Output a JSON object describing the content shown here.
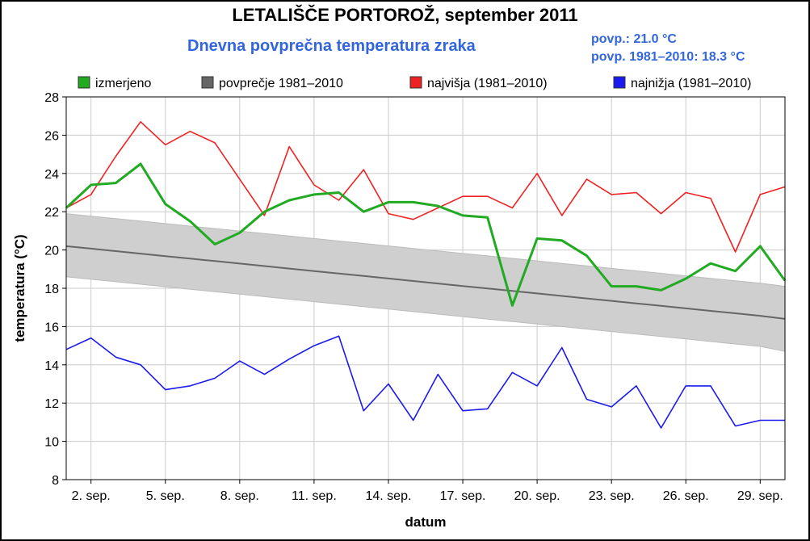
{
  "title": "LETALIŠČE PORTOROŽ, september 2011",
  "subtitle": "Dnevna povprečna temperatura zraka",
  "stats": [
    "povp.: 21.0 °C",
    "povp. 1981–2010: 18.3 °C"
  ],
  "colors": {
    "measured": "#22aa22",
    "average": "#666666",
    "band": "#cfcfcf",
    "max": "#ee2222",
    "min": "#1a1aee"
  },
  "chart_data": {
    "type": "line",
    "xlabel": "datum",
    "ylabel": "temperatura (°C)",
    "xlim": [
      1,
      30
    ],
    "ylim": [
      8,
      28
    ],
    "grid": true,
    "legend": "top",
    "x_ticks": [
      2,
      5,
      8,
      11,
      14,
      17,
      20,
      23,
      26,
      29
    ],
    "x_tick_labels": [
      "2. sep.",
      "5. sep.",
      "8. sep.",
      "11. sep.",
      "14. sep.",
      "17. sep.",
      "20. sep.",
      "23. sep.",
      "26. sep.",
      "29. sep."
    ],
    "y_ticks": [
      8,
      10,
      12,
      14,
      16,
      18,
      20,
      22,
      24,
      26,
      28
    ],
    "x": [
      1,
      2,
      3,
      4,
      5,
      6,
      7,
      8,
      9,
      10,
      11,
      12,
      13,
      14,
      15,
      16,
      17,
      18,
      19,
      20,
      21,
      22,
      23,
      24,
      25,
      26,
      27,
      28,
      29,
      30
    ],
    "series": [
      {
        "name": "izmerjeno",
        "color": "#22aa22",
        "values": [
          22.2,
          23.4,
          23.5,
          24.5,
          22.4,
          21.5,
          20.3,
          20.9,
          22.0,
          22.6,
          22.9,
          23.0,
          22.0,
          22.5,
          22.5,
          22.3,
          21.8,
          21.7,
          17.1,
          20.6,
          20.5,
          19.7,
          18.1,
          18.1,
          17.9,
          18.5,
          19.3,
          18.9,
          20.2,
          18.4
        ]
      },
      {
        "name": "povprečje 1981–2010",
        "color": "#666666",
        "values": [
          20.2,
          20.07,
          19.94,
          19.81,
          19.68,
          19.55,
          19.42,
          19.29,
          19.16,
          19.03,
          18.9,
          18.77,
          18.64,
          18.51,
          18.38,
          18.25,
          18.12,
          17.99,
          17.86,
          17.73,
          17.6,
          17.47,
          17.34,
          17.21,
          17.08,
          16.95,
          16.82,
          16.69,
          16.56,
          16.4
        ],
        "band_upper": [
          21.9,
          21.77,
          21.64,
          21.51,
          21.38,
          21.25,
          21.12,
          20.99,
          20.86,
          20.73,
          20.6,
          20.47,
          20.34,
          20.21,
          20.08,
          19.95,
          19.82,
          19.69,
          19.56,
          19.43,
          19.3,
          19.17,
          19.04,
          18.91,
          18.78,
          18.65,
          18.52,
          18.39,
          18.26,
          18.1
        ],
        "band_lower": [
          18.6,
          18.47,
          18.34,
          18.21,
          18.08,
          17.95,
          17.82,
          17.69,
          17.56,
          17.43,
          17.3,
          17.17,
          17.04,
          16.91,
          16.78,
          16.65,
          16.52,
          16.39,
          16.26,
          16.13,
          16.0,
          15.87,
          15.74,
          15.61,
          15.48,
          15.35,
          15.22,
          15.09,
          14.96,
          14.7
        ]
      },
      {
        "name": "najvišja (1981–2010)",
        "color": "#ee2222",
        "values": [
          22.2,
          22.9,
          24.9,
          26.7,
          25.5,
          26.2,
          25.6,
          23.7,
          21.8,
          25.4,
          23.4,
          22.6,
          24.2,
          21.9,
          21.6,
          22.2,
          22.8,
          22.8,
          22.2,
          24.0,
          21.8,
          23.7,
          22.9,
          23.0,
          21.9,
          23.0,
          22.7,
          19.9,
          22.9,
          23.3
        ]
      },
      {
        "name": "najnižja (1981–2010)",
        "color": "#1a1aee",
        "values": [
          14.8,
          15.4,
          14.4,
          14.0,
          12.7,
          12.9,
          13.3,
          14.2,
          13.5,
          14.3,
          15.0,
          15.5,
          11.6,
          13.0,
          11.1,
          13.5,
          11.6,
          11.7,
          13.6,
          12.9,
          14.9,
          12.2,
          11.8,
          12.9,
          10.7,
          12.9,
          12.9,
          10.8,
          11.1,
          11.1
        ]
      }
    ]
  }
}
